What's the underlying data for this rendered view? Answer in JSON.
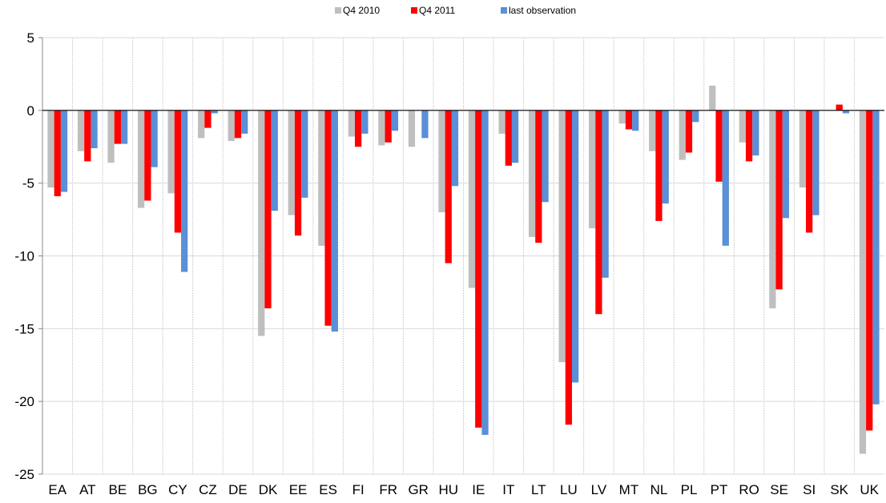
{
  "chart_data": {
    "type": "bar",
    "categories": [
      "EA",
      "AT",
      "BE",
      "BG",
      "CY",
      "CZ",
      "DE",
      "DK",
      "EE",
      "ES",
      "FI",
      "FR",
      "GR",
      "HU",
      "IE",
      "IT",
      "LT",
      "LU",
      "LV",
      "MT",
      "NL",
      "PL",
      "PT",
      "RO",
      "SE",
      "SI",
      "SK",
      "UK"
    ],
    "series": [
      {
        "name": "Q4 2010",
        "color": "#bfbfbf",
        "values": [
          -5.3,
          -2.8,
          -3.6,
          -6.7,
          -5.7,
          -1.9,
          -2.1,
          -15.5,
          -7.2,
          -9.3,
          -1.8,
          -2.4,
          -2.5,
          -7.0,
          -12.2,
          -1.6,
          -8.7,
          -17.3,
          -8.1,
          -0.9,
          -2.8,
          -3.4,
          1.7,
          -2.2,
          -13.6,
          -5.3,
          null,
          -23.6
        ]
      },
      {
        "name": "Q4 2011",
        "color": "#ff0000",
        "values": [
          -5.9,
          -3.5,
          -2.3,
          -6.2,
          -8.4,
          -1.2,
          -1.9,
          -13.6,
          -8.6,
          -14.8,
          -2.5,
          -2.2,
          null,
          -10.5,
          -21.8,
          -3.8,
          -9.1,
          -21.6,
          -14.0,
          -1.3,
          -7.6,
          -2.9,
          -4.9,
          -3.5,
          -12.3,
          -8.4,
          0.4,
          -22.0
        ]
      },
      {
        "name": "last observation",
        "color": "#5b8fd6",
        "values": [
          -5.6,
          -2.6,
          -2.3,
          -3.9,
          -11.1,
          -0.2,
          -1.6,
          -6.9,
          -6.0,
          -15.2,
          -1.6,
          -1.4,
          -1.9,
          -5.2,
          -22.3,
          -3.6,
          -6.3,
          -18.7,
          -11.5,
          -1.4,
          -6.4,
          -0.8,
          -9.3,
          -3.1,
          -7.4,
          -7.2,
          -0.2,
          -20.2
        ]
      }
    ],
    "ylim": [
      -25,
      5
    ],
    "yticks": [
      -25,
      -20,
      -15,
      -10,
      -5,
      0,
      5
    ],
    "grid": true,
    "legend": "top"
  }
}
